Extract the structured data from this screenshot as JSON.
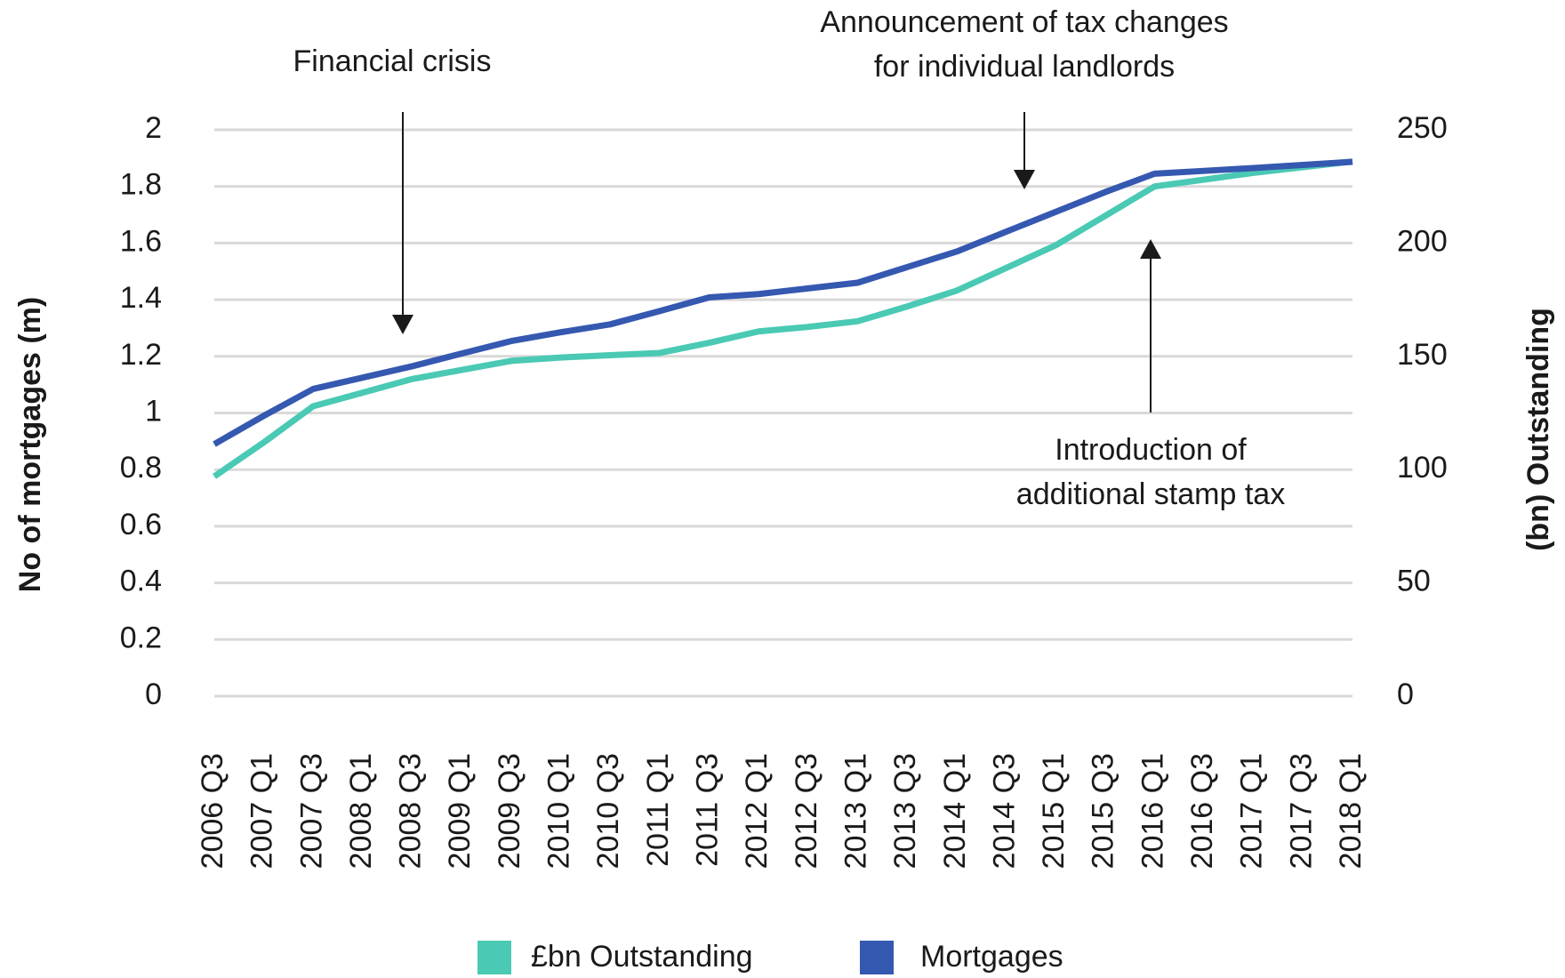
{
  "chart_data": {
    "type": "line",
    "y_label": "No of mortgages (m)",
    "y2_label": "(bn) Outstanding",
    "categories": [
      "2006 Q3",
      "2007 Q1",
      "2007 Q3",
      "2008 Q1",
      "2008 Q3",
      "2009 Q1",
      "2009 Q3",
      "2010 Q1",
      "2010 Q3",
      "2011 Q1",
      "2011 Q3",
      "2012 Q1",
      "2012 Q3",
      "2013 Q1",
      "2013 Q3",
      "2014 Q1",
      "2014 Q3",
      "2015 Q1",
      "2015 Q3",
      "2016 Q1",
      "2016 Q3",
      "2017 Q1",
      "2017 Q3",
      "2018 Q1"
    ],
    "series": [
      {
        "name": "£bn Outstanding",
        "color": "#4ac9b4",
        "axis": "y2",
        "values": [
          97,
          112,
          128,
          134,
          140,
          144,
          148,
          149.5,
          150.5,
          151.5,
          156,
          161,
          163,
          165.5,
          172,
          179,
          189,
          199,
          212,
          225,
          228,
          231,
          233.5,
          236
        ]
      },
      {
        "name": "Mortgages",
        "color": "#3558b0",
        "values": [
          0.89,
          0.99,
          1.085,
          1.125,
          1.165,
          1.21,
          1.254,
          1.285,
          1.313,
          1.36,
          1.408,
          1.42,
          1.44,
          1.46,
          1.515,
          1.57,
          1.64,
          1.71,
          1.78,
          1.845,
          1.855,
          1.865,
          1.876,
          1.887
        ]
      }
    ],
    "ylim": [
      0,
      2
    ],
    "yticks": [
      0,
      0.2,
      0.4,
      0.6,
      0.8,
      1,
      1.2,
      1.4,
      1.6,
      1.8,
      2
    ],
    "y2lim": [
      0,
      250
    ],
    "y2ticks": [
      0,
      50,
      100,
      150,
      200,
      250
    ],
    "grid": true,
    "legend": "bottom",
    "annotations": [
      {
        "lines": [
          "Financial crisis"
        ]
      },
      {
        "lines": [
          "Announcement of tax changes",
          "for individual landlords"
        ]
      },
      {
        "lines": [
          "Introduction of",
          "additional stamp tax"
        ]
      }
    ]
  }
}
